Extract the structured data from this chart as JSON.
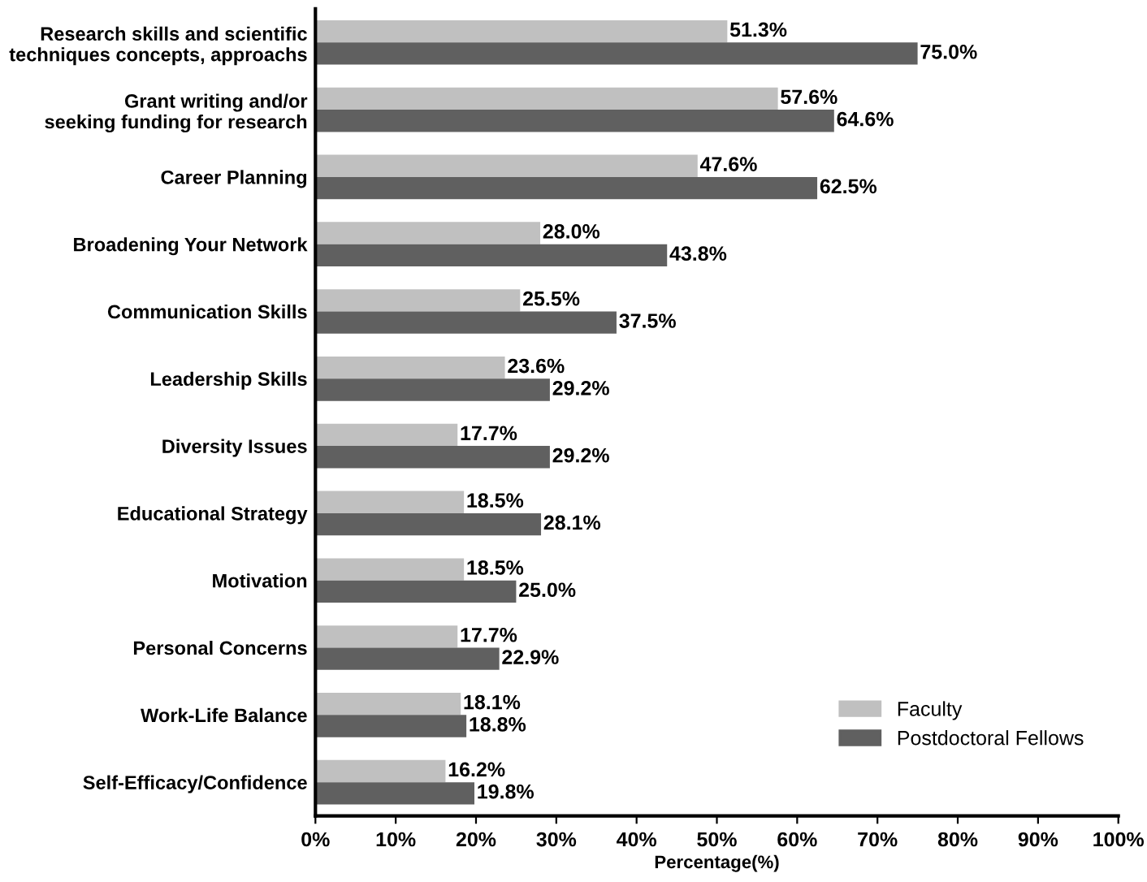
{
  "chart_data": {
    "type": "bar",
    "orientation": "horizontal",
    "xlabel": "Percentage(%)",
    "categories": [
      "Research skills and scientific\ntechniques concepts, approachs",
      "Grant writing and/or\nseeking funding for research",
      "Career Planning",
      "Broadening Your Network",
      "Communication Skills",
      "Leadership Skills",
      "Diversity Issues",
      "Educational Strategy",
      "Motivation",
      "Personal Concerns",
      "Work-Life Balance",
      "Self-Efficacy/Confidence"
    ],
    "series": [
      {
        "name": "Faculty",
        "color": "#c0c0c0",
        "values": [
          51.3,
          57.6,
          47.6,
          28.0,
          25.5,
          23.6,
          17.7,
          18.5,
          18.5,
          17.7,
          18.1,
          16.2
        ],
        "value_labels": [
          "51.3%",
          "57.6%",
          "47.6%",
          "28.0%",
          "25.5%",
          "23.6%",
          "17.7%",
          "18.5%",
          "18.5%",
          "17.7%",
          "18.1%",
          "16.2%"
        ]
      },
      {
        "name": "Postdoctoral Fellows",
        "color": "#606060",
        "values": [
          75.0,
          64.6,
          62.5,
          43.8,
          37.5,
          29.2,
          29.2,
          28.1,
          25.0,
          22.9,
          18.8,
          19.8
        ],
        "value_labels": [
          "75.0%",
          "64.6%",
          "62.5%",
          "43.8%",
          "37.5%",
          "29.2%",
          "29.2%",
          "28.1%",
          "25.0%",
          "22.9%",
          "18.8%",
          "19.8%"
        ]
      }
    ],
    "xlim": [
      0,
      100
    ],
    "xticks": [
      {
        "value": 0,
        "label": "0%"
      },
      {
        "value": 10,
        "label": "10%"
      },
      {
        "value": 20,
        "label": "20%"
      },
      {
        "value": 30,
        "label": "30%"
      },
      {
        "value": 40,
        "label": "40%"
      },
      {
        "value": 50,
        "label": "50%"
      },
      {
        "value": 60,
        "label": "60%"
      },
      {
        "value": 70,
        "label": "70%"
      },
      {
        "value": 80,
        "label": "80%"
      },
      {
        "value": 90,
        "label": "90%"
      },
      {
        "value": 100,
        "label": "100%"
      }
    ],
    "grid": false,
    "legend": "bottom right"
  }
}
